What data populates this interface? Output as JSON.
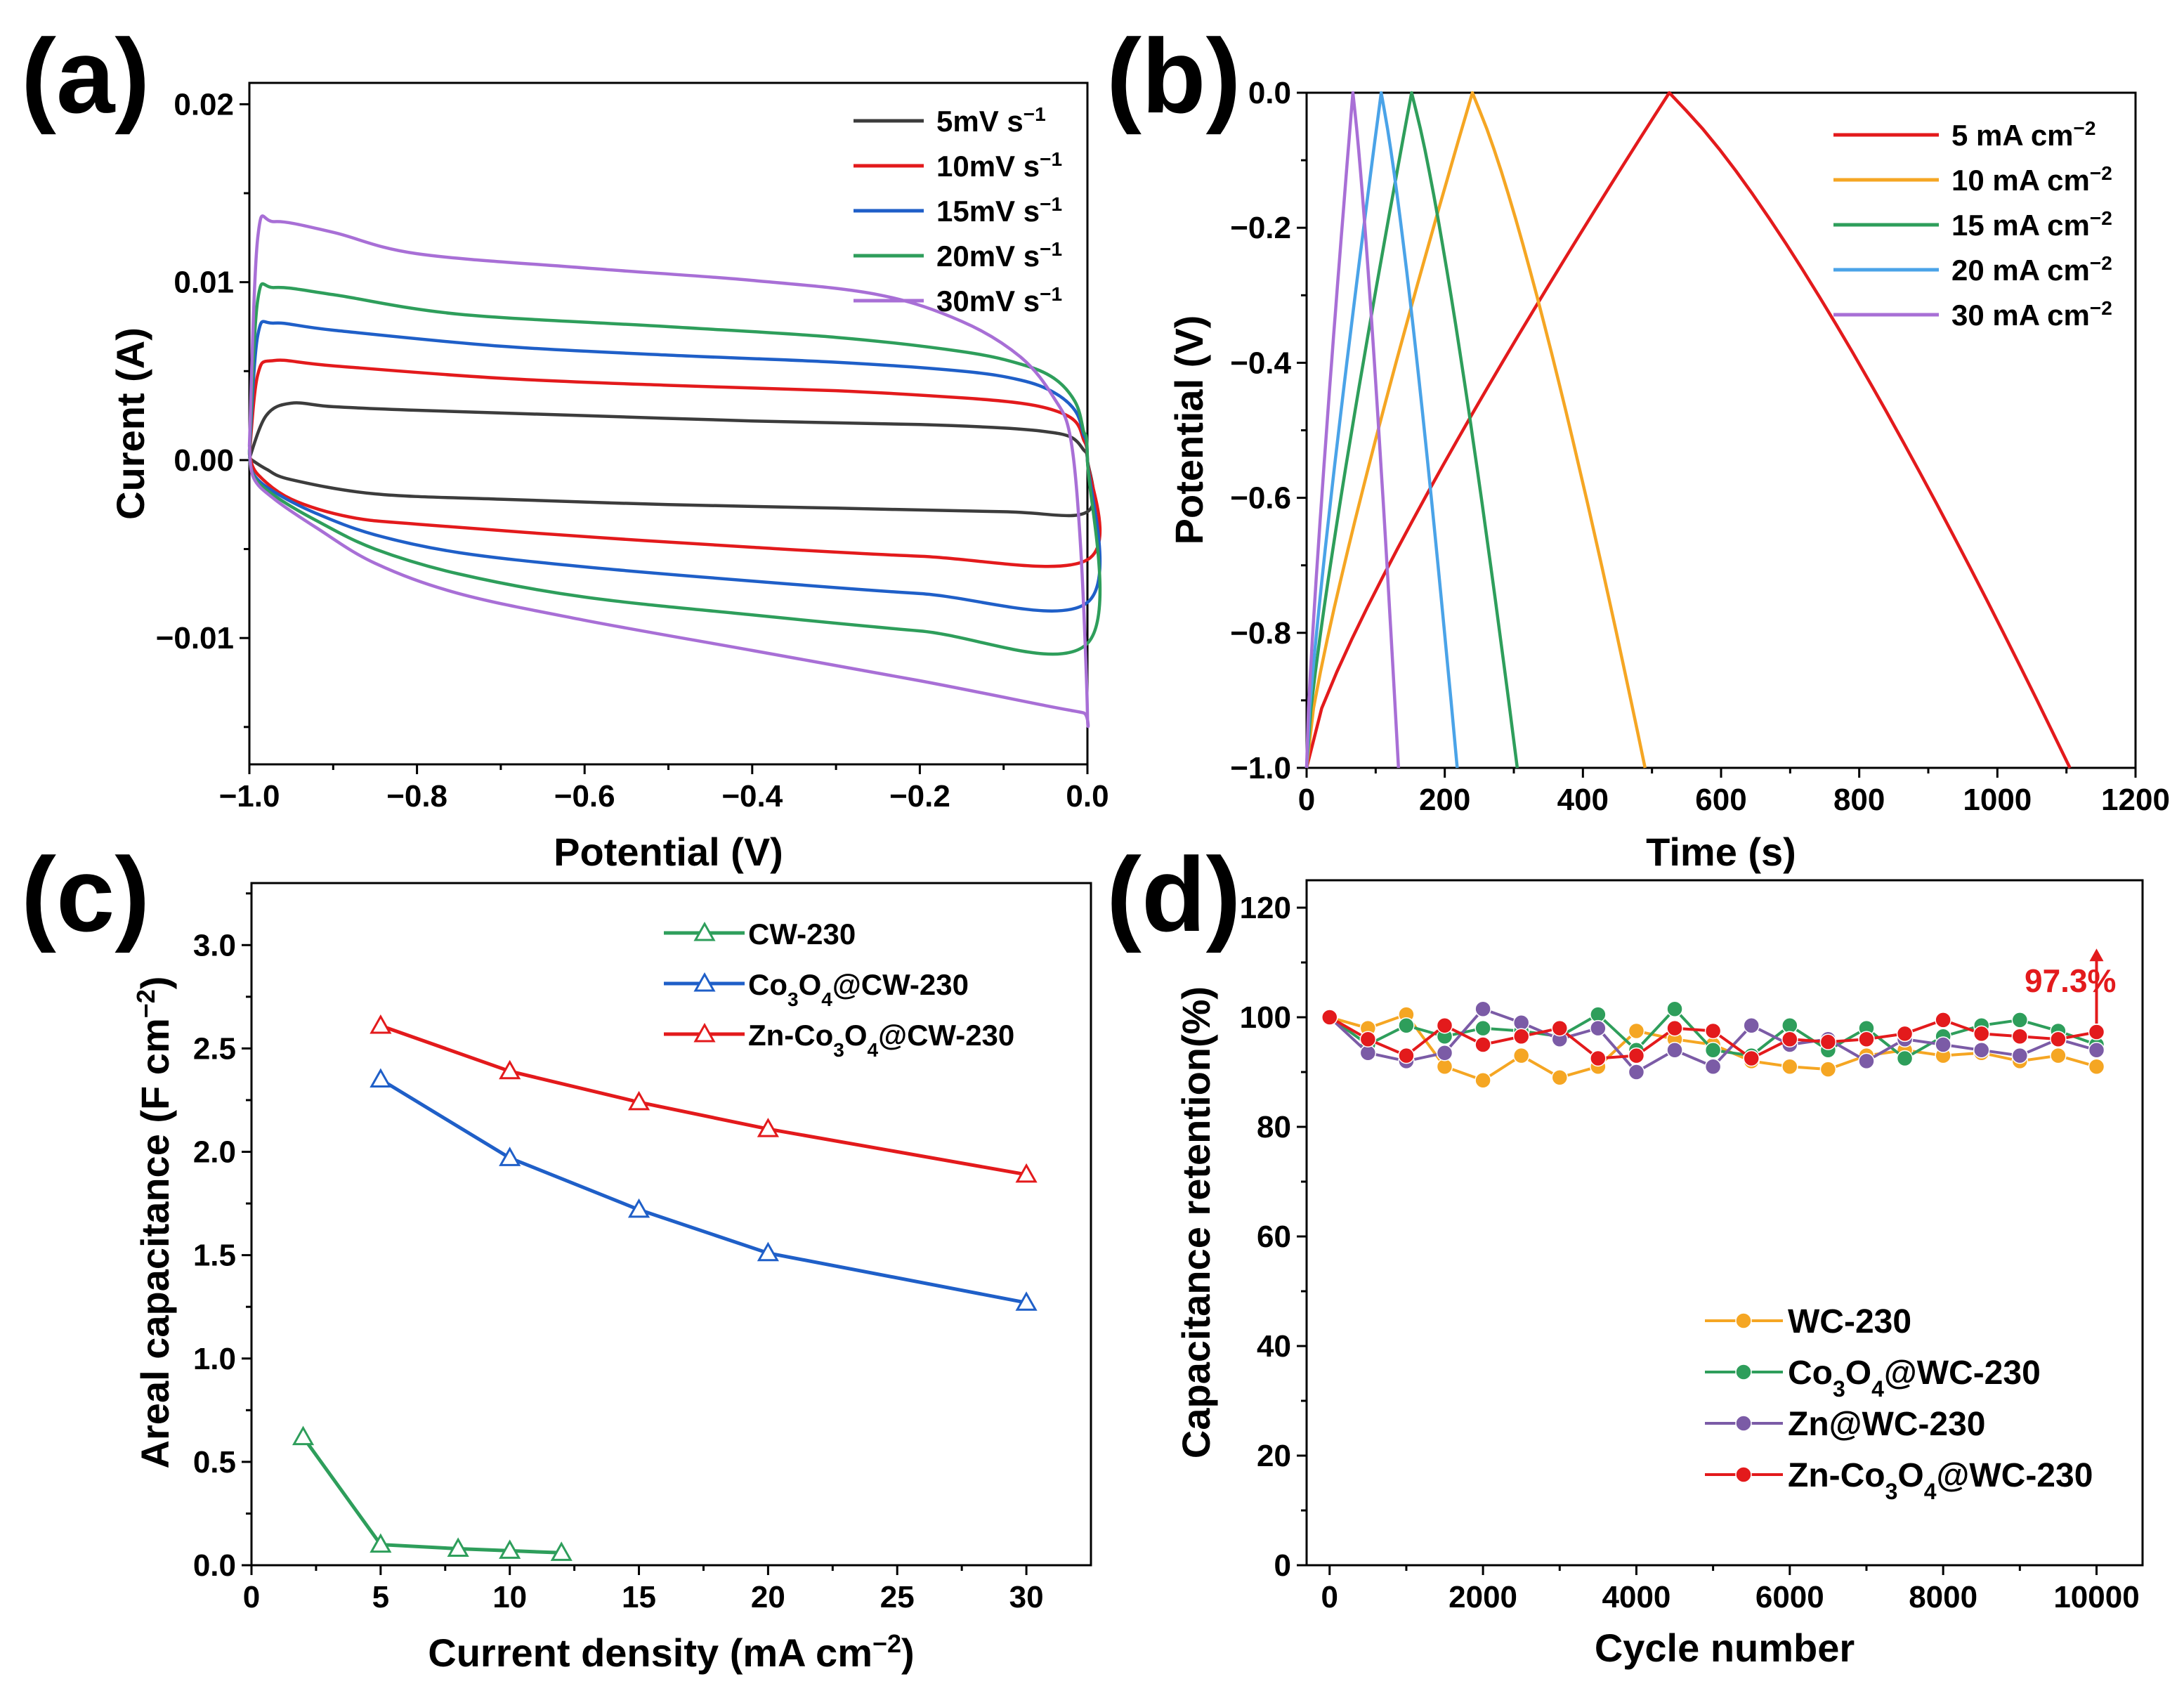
{
  "colors": {
    "black": "#3c3c3c",
    "red": "#e31a1c",
    "blue": "#1f5fc8",
    "green": "#2e9e5b",
    "purple": "#a86fd6",
    "orange": "#f5a623",
    "lightblue": "#4aa3e8",
    "dkpurple": "#7b5ba6"
  },
  "chart_data": [
    {
      "panel": "(a)",
      "type": "line",
      "xlabel": "Potential (V)",
      "ylabel": "Curent (A)",
      "xlim": [
        -1.0,
        0.0
      ],
      "ylim": [
        -0.0171,
        0.0212
      ],
      "xticks": [
        "−1.0",
        "−0.8",
        "−0.6",
        "−0.4",
        "−0.2",
        "0.0"
      ],
      "yticks": [
        "0.02",
        "0.01",
        "0.00",
        "−0.01"
      ],
      "legend": [
        "5mV s",
        "10mV s",
        "15mV s",
        "20mV s",
        "30mV s"
      ],
      "legend_sup": "−1",
      "series": [
        {
          "name": "5mV s−1",
          "color_key": "black",
          "x": [
            -1.0,
            -0.98,
            -0.95,
            -0.9,
            -0.8,
            -0.6,
            -0.4,
            -0.2,
            -0.1,
            -0.05,
            -0.02,
            -0.005,
            0.0,
            0.0,
            -0.1,
            -0.3,
            -0.5,
            -0.7,
            -0.85,
            -0.95,
            -0.98,
            -1.0
          ],
          "y": [
            0.0001,
            0.0025,
            0.0032,
            0.003,
            0.0028,
            0.0025,
            0.0022,
            0.002,
            0.0018,
            0.0016,
            0.0013,
            0.0006,
            0.0,
            -0.0029,
            -0.0029,
            -0.0027,
            -0.0025,
            -0.0022,
            -0.0019,
            -0.0011,
            -0.0005,
            0.0001
          ]
        },
        {
          "name": "10mV s−1",
          "color_key": "red",
          "x": [
            -1.0,
            -0.99,
            -0.97,
            -0.9,
            -0.7,
            -0.5,
            -0.3,
            -0.15,
            -0.08,
            -0.04,
            -0.015,
            -0.005,
            0.0,
            0.0,
            -0.2,
            -0.4,
            -0.6,
            -0.8,
            -0.88,
            -0.95,
            -0.99,
            -1.0
          ],
          "y": [
            0.0003,
            0.0048,
            0.0056,
            0.0053,
            0.0046,
            0.0042,
            0.0039,
            0.0035,
            0.0032,
            0.0028,
            0.0022,
            0.0012,
            0.0,
            -0.0056,
            -0.0054,
            -0.0049,
            -0.0043,
            -0.0036,
            -0.0032,
            -0.0022,
            -0.0008,
            0.0003
          ]
        },
        {
          "name": "15mV s−1",
          "color_key": "blue",
          "x": [
            -1.0,
            -0.99,
            -0.97,
            -0.9,
            -0.7,
            -0.5,
            -0.3,
            -0.15,
            -0.08,
            -0.04,
            -0.015,
            -0.005,
            0.0,
            0.0,
            -0.2,
            -0.4,
            -0.6,
            -0.75,
            -0.85,
            -0.92,
            -0.97,
            -0.995,
            -1.0
          ],
          "y": [
            0.0004,
            0.007,
            0.0077,
            0.0073,
            0.0064,
            0.0059,
            0.0055,
            0.005,
            0.0045,
            0.0038,
            0.0028,
            0.0015,
            0.0,
            -0.008,
            -0.0075,
            -0.0068,
            -0.006,
            -0.0052,
            -0.0042,
            -0.003,
            -0.0018,
            -0.0008,
            0.0004
          ]
        },
        {
          "name": "20mV s−1",
          "color_key": "green",
          "x": [
            -1.0,
            -0.99,
            -0.97,
            -0.9,
            -0.75,
            -0.5,
            -0.3,
            -0.15,
            -0.08,
            -0.04,
            -0.015,
            -0.005,
            0.0,
            0.0,
            -0.2,
            -0.4,
            -0.6,
            -0.75,
            -0.85,
            -0.92,
            -0.97,
            -0.995,
            -1.0
          ],
          "y": [
            0.0005,
            0.009,
            0.0097,
            0.0093,
            0.0082,
            0.0075,
            0.0069,
            0.0061,
            0.0054,
            0.0046,
            0.0033,
            0.0017,
            0.0,
            -0.0103,
            -0.0096,
            -0.0087,
            -0.0077,
            -0.0064,
            -0.005,
            -0.0034,
            -0.002,
            -0.0009,
            0.0005
          ]
        },
        {
          "name": "30mV s−1",
          "color_key": "purple",
          "x": [
            -1.0,
            -0.99,
            -0.97,
            -0.9,
            -0.8,
            -0.6,
            -0.4,
            -0.25,
            -0.15,
            -0.08,
            -0.04,
            -0.02,
            -0.008,
            0.0,
            -0.005,
            -0.05,
            -0.2,
            -0.4,
            -0.6,
            -0.75,
            -0.85,
            -0.92,
            -0.97,
            -0.995,
            -1.0
          ],
          "y": [
            0.0008,
            0.0125,
            0.0134,
            0.0128,
            0.0116,
            0.0108,
            0.0101,
            0.0093,
            0.0078,
            0.0058,
            0.0035,
            0.0012,
            -0.005,
            -0.0143,
            -0.0142,
            -0.0138,
            -0.0124,
            -0.0107,
            -0.009,
            -0.0075,
            -0.0058,
            -0.0038,
            -0.0022,
            -0.001,
            0.0008
          ]
        }
      ]
    },
    {
      "panel": "(b)",
      "type": "line",
      "xlabel": "Time (s)",
      "ylabel": "Potential (V)",
      "xlim": [
        0,
        1200
      ],
      "ylim": [
        -1.0,
        0.0
      ],
      "xticks": [
        "0",
        "200",
        "400",
        "600",
        "800",
        "1000",
        "1200"
      ],
      "yticks": [
        "0.0",
        "−0.2",
        "−0.4",
        "−0.6",
        "−0.8",
        "−1.0"
      ],
      "legend": [
        "5 mA cm",
        "10 mA cm",
        "15 mA cm",
        "20 mA cm",
        "30 mA cm"
      ],
      "legend_sup": "−2",
      "series": [
        {
          "name": "5 mA cm−2",
          "color_key": "red",
          "peak_time": 525,
          "end_time": 1105
        },
        {
          "name": "10 mA cm−2",
          "color_key": "orange",
          "peak_time": 240,
          "end_time": 490
        },
        {
          "name": "15 mA cm−2",
          "color_key": "green",
          "peak_time": 152,
          "end_time": 305
        },
        {
          "name": "20 mA cm−2",
          "color_key": "lightblue",
          "peak_time": 108,
          "end_time": 218
        },
        {
          "name": "30 mA cm−2",
          "color_key": "purple",
          "peak_time": 67,
          "end_time": 133
        }
      ]
    },
    {
      "panel": "(c)",
      "type": "line",
      "xlabel": "Current density (mA cm",
      "xlabel_sup": "−2",
      "xlabel_end": ")",
      "ylabel": "Areal capacitance (F cm",
      "ylabel_sup": "−2",
      "ylabel_end": ")",
      "xlim": [
        0,
        32.5
      ],
      "ylim": [
        0,
        3.3
      ],
      "xticks": [
        "0",
        "5",
        "10",
        "15",
        "20",
        "25",
        "30"
      ],
      "yticks": [
        "0.0",
        "0.5",
        "1.0",
        "1.5",
        "2.0",
        "2.5",
        "3.0"
      ],
      "legend": [
        "CW-230",
        "Co3O4@CW-230",
        "Zn-Co3O4@CW-230"
      ],
      "series": [
        {
          "name": "CW-230",
          "color_key": "green",
          "x": [
            2,
            5,
            8,
            10,
            12
          ],
          "y": [
            0.62,
            0.1,
            0.08,
            0.07,
            0.06
          ]
        },
        {
          "name": "Co3O4@CW-230",
          "color_key": "blue",
          "x": [
            5,
            10,
            15,
            20,
            30
          ],
          "y": [
            2.35,
            1.97,
            1.72,
            1.51,
            1.27
          ]
        },
        {
          "name": "Zn-Co3O4@CW-230",
          "color_key": "red",
          "x": [
            5,
            10,
            15,
            20,
            30
          ],
          "y": [
            2.61,
            2.39,
            2.24,
            2.11,
            1.89
          ]
        }
      ]
    },
    {
      "panel": "(d)",
      "type": "line",
      "xlabel": "Cycle number",
      "ylabel": "Capacitance retention(%)",
      "xlim": [
        -300,
        10600
      ],
      "ylim": [
        0,
        125
      ],
      "xticks": [
        "0",
        "2000",
        "4000",
        "6000",
        "8000",
        "10000"
      ],
      "yticks": [
        "0",
        "20",
        "40",
        "60",
        "80",
        "100",
        "120"
      ],
      "annotation": "97.3%",
      "legend": [
        "WC-230",
        "Co3O4@WC-230",
        "Zn@WC-230",
        "Zn-Co3O4@WC-230"
      ],
      "x": [
        0,
        500,
        1000,
        1500,
        2000,
        2500,
        3000,
        3500,
        4000,
        4500,
        5000,
        5500,
        6000,
        6500,
        7000,
        7500,
        8000,
        8500,
        9000,
        9500,
        10000
      ],
      "series": [
        {
          "name": "WC-230",
          "color_key": "orange",
          "y": [
            100,
            98,
            100.5,
            91,
            88.5,
            93,
            89,
            91,
            97.5,
            96,
            95,
            92,
            91,
            90.5,
            93,
            94,
            93,
            93.5,
            92,
            93,
            91
          ]
        },
        {
          "name": "Co3O4@WC-230",
          "color_key": "green",
          "y": [
            100,
            95,
            98.5,
            96.5,
            98,
            97.5,
            96.5,
            100.5,
            94,
            101.5,
            94,
            93,
            98.5,
            94,
            98,
            92.5,
            96.5,
            98.5,
            99.5,
            97.5,
            95
          ]
        },
        {
          "name": "Zn@WC-230",
          "color_key": "dkpurple",
          "y": [
            100,
            93.5,
            92,
            93.5,
            101.5,
            99,
            96,
            98,
            90,
            94,
            91,
            98.5,
            95,
            96,
            92,
            96,
            95,
            94,
            93,
            96,
            94
          ]
        },
        {
          "name": "Zn-Co3O4@WC-230",
          "color_key": "red",
          "y": [
            100,
            96,
            93,
            98.5,
            95,
            96.5,
            98,
            92.5,
            93,
            98,
            97.5,
            92.5,
            96,
            95.5,
            96,
            97,
            99.5,
            97,
            96.5,
            96,
            97.3
          ]
        }
      ]
    }
  ]
}
